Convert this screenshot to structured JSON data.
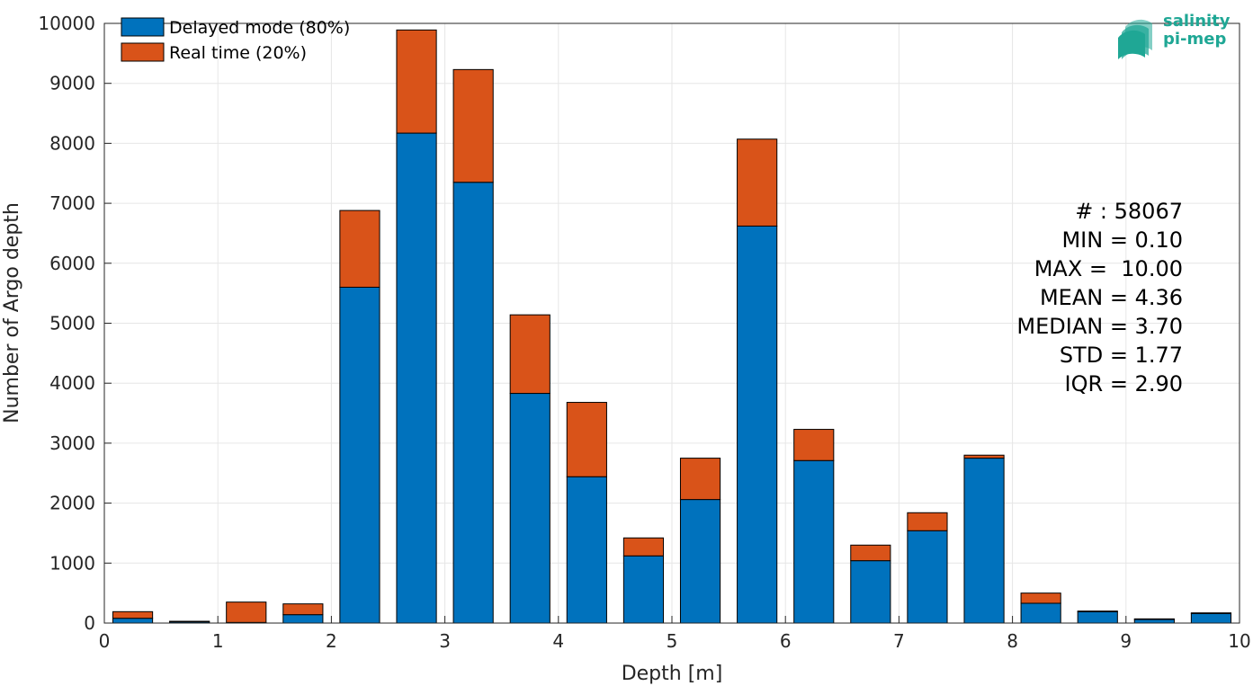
{
  "chart_data": {
    "type": "bar",
    "stacked": true,
    "xlabel": "Depth [m]",
    "ylabel": "Number of Argo depth",
    "xlim": [
      0,
      10
    ],
    "ylim": [
      0,
      10000
    ],
    "xticks": [
      "0",
      "1",
      "2",
      "3",
      "4",
      "5",
      "6",
      "7",
      "8",
      "9",
      "10"
    ],
    "yticks": [
      "0",
      "1000",
      "2000",
      "3000",
      "4000",
      "5000",
      "6000",
      "7000",
      "8000",
      "9000",
      "10000"
    ],
    "grid": true,
    "legend_position": "top-left",
    "bin_centers": [
      0.25,
      0.75,
      1.25,
      1.75,
      2.25,
      2.75,
      3.25,
      3.75,
      4.25,
      4.75,
      5.25,
      5.75,
      6.25,
      6.75,
      7.25,
      7.75,
      8.25,
      8.75,
      9.25,
      9.75
    ],
    "series": [
      {
        "name": "Delayed mode (80%)",
        "color": "#0072bd",
        "values": [
          80,
          20,
          10,
          140,
          5600,
          8170,
          7350,
          3830,
          2440,
          1120,
          2060,
          6620,
          2710,
          1040,
          1540,
          2750,
          330,
          190,
          60,
          160
        ]
      },
      {
        "name": "Real time (20%)",
        "color": "#d95319",
        "values": [
          110,
          10,
          340,
          180,
          1280,
          1720,
          1880,
          1310,
          1240,
          300,
          690,
          1450,
          520,
          260,
          300,
          50,
          170,
          10,
          10,
          10
        ]
      }
    ]
  },
  "stats": {
    "count": "# : 58067",
    "min": "MIN = 0.10",
    "max": "MAX =  10.00",
    "mean": "MEAN = 4.36",
    "median": "MEDIAN = 3.70",
    "std": "STD = 1.77",
    "iqr": "IQR = 2.90"
  },
  "logo": {
    "line1": "salinity",
    "line2": "pi-mep",
    "color": "#1fa795"
  }
}
